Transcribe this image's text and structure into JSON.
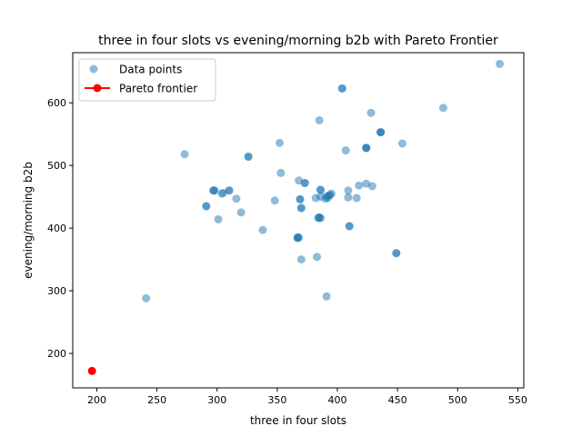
{
  "chart_data": {
    "type": "scatter",
    "title": "three in four slots vs evening/morning b2b with Pareto Frontier",
    "xlabel": "three in four slots",
    "ylabel": "evening/morning b2b",
    "xlim": [
      180,
      555
    ],
    "ylim": [
      145,
      680
    ],
    "xticks": [
      200,
      250,
      300,
      350,
      400,
      450,
      500,
      550
    ],
    "yticks": [
      200,
      300,
      400,
      500,
      600
    ],
    "grid": false,
    "legend_position": "top-left",
    "series": [
      {
        "name": "Data points",
        "color": "#1f77b4",
        "alpha": 0.5,
        "marker": "circle",
        "points": [
          [
            535,
            662
          ],
          [
            404,
            623
          ],
          [
            404,
            623
          ],
          [
            488,
            592
          ],
          [
            428,
            584
          ],
          [
            385,
            572
          ],
          [
            436,
            553
          ],
          [
            436,
            553
          ],
          [
            436,
            553
          ],
          [
            454,
            535
          ],
          [
            352,
            536
          ],
          [
            424,
            528
          ],
          [
            424,
            528
          ],
          [
            424,
            528
          ],
          [
            407,
            524
          ],
          [
            273,
            518
          ],
          [
            326,
            514
          ],
          [
            326,
            514
          ],
          [
            353,
            488
          ],
          [
            368,
            476
          ],
          [
            373,
            472
          ],
          [
            373,
            472
          ],
          [
            424,
            471
          ],
          [
            418,
            468
          ],
          [
            429,
            467
          ],
          [
            297,
            460
          ],
          [
            297,
            460
          ],
          [
            298,
            460
          ],
          [
            310,
            460
          ],
          [
            310,
            460
          ],
          [
            409,
            460
          ],
          [
            386,
            461
          ],
          [
            386,
            461
          ],
          [
            304,
            455
          ],
          [
            305,
            456
          ],
          [
            395,
            455
          ],
          [
            394,
            453
          ],
          [
            393,
            452
          ],
          [
            391,
            451
          ],
          [
            390,
            447
          ],
          [
            392,
            448
          ],
          [
            386,
            450
          ],
          [
            382,
            448
          ],
          [
            409,
            449
          ],
          [
            416,
            448
          ],
          [
            316,
            447
          ],
          [
            369,
            446
          ],
          [
            369,
            446
          ],
          [
            348,
            444
          ],
          [
            291,
            435
          ],
          [
            291,
            435
          ],
          [
            370,
            432
          ],
          [
            370,
            432
          ],
          [
            320,
            425
          ],
          [
            385,
            417
          ],
          [
            385,
            417
          ],
          [
            386,
            416
          ],
          [
            384,
            416
          ],
          [
            301,
            414
          ],
          [
            410,
            403
          ],
          [
            410,
            403
          ],
          [
            338,
            397
          ],
          [
            367,
            385
          ],
          [
            367,
            385
          ],
          [
            368,
            385
          ],
          [
            367,
            384
          ],
          [
            449,
            360
          ],
          [
            449,
            360
          ],
          [
            383,
            354
          ],
          [
            370,
            350
          ],
          [
            391,
            291
          ],
          [
            241,
            288
          ]
        ]
      },
      {
        "name": "Pareto frontier",
        "color": "#ff0000",
        "alpha": 1,
        "marker": "circle",
        "line": true,
        "points": [
          [
            196,
            172
          ]
        ]
      }
    ]
  }
}
